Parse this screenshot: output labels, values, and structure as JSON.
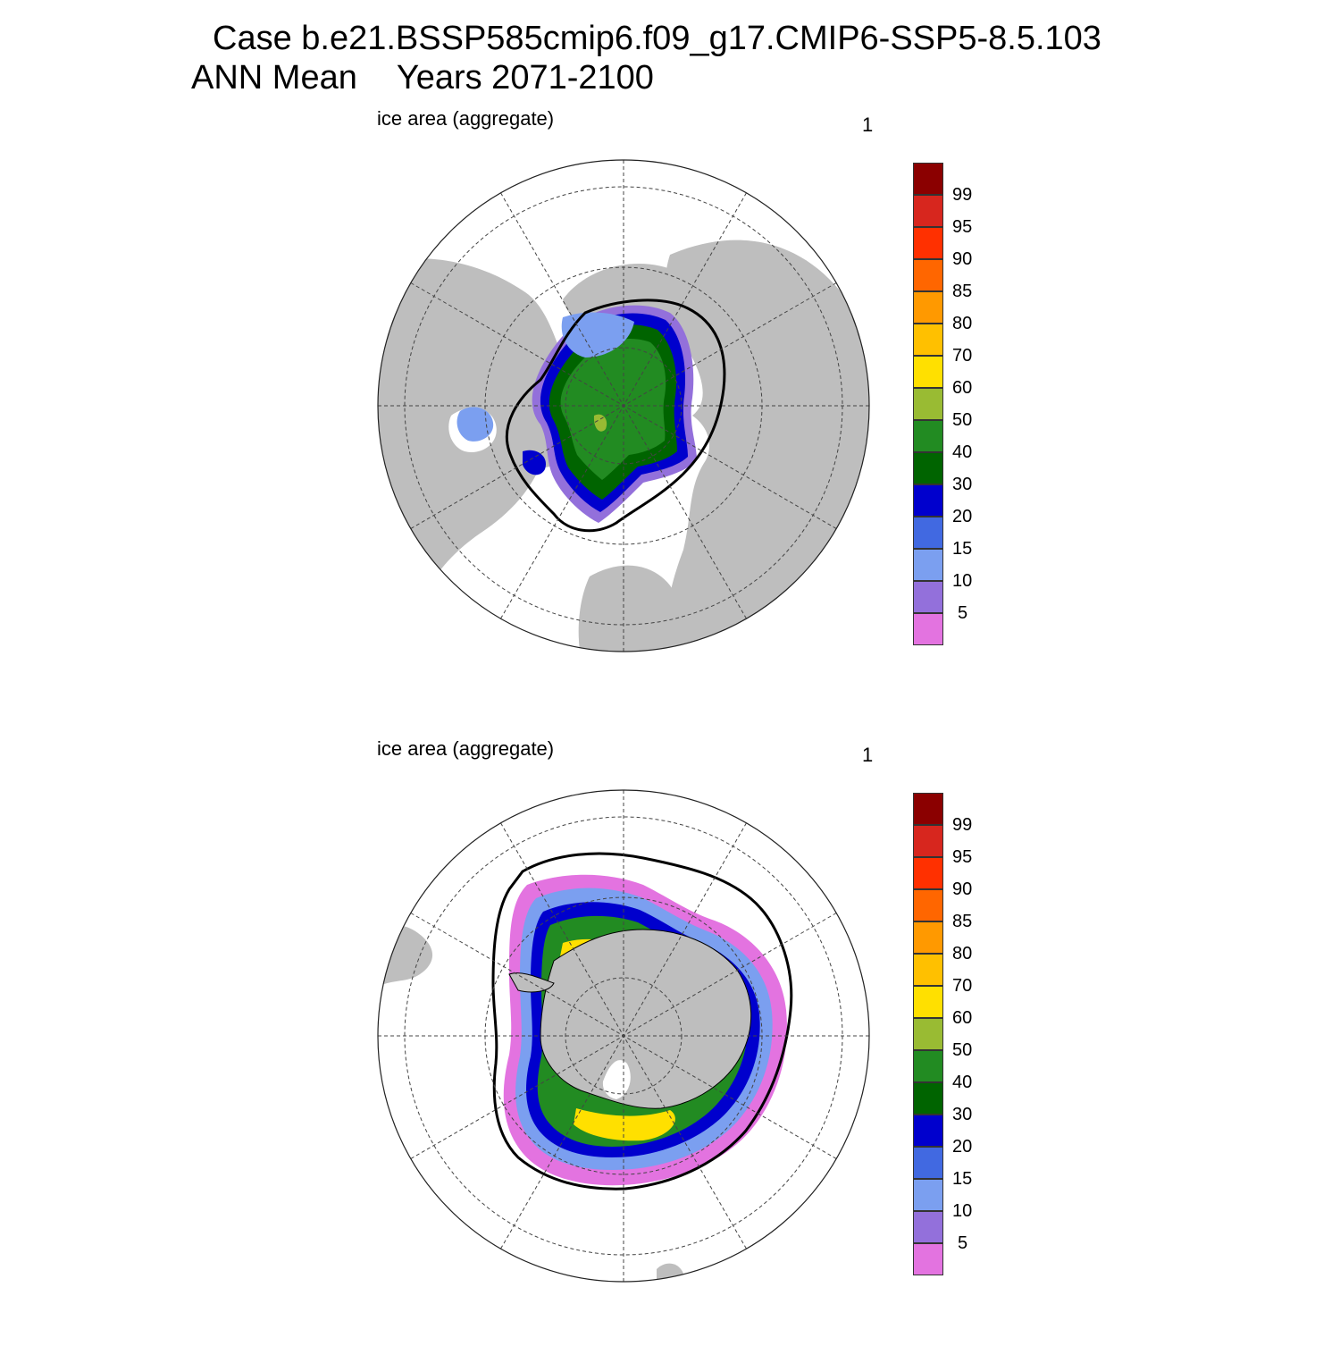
{
  "title": {
    "line1": "Case b.e21.BSSP585cmip6.f09_g17.CMIP6-SSP5-8.5.103",
    "line2_left": "ANN Mean",
    "line2_right": "Years 2071-2100"
  },
  "panels": [
    {
      "id": "north",
      "hemisphere": "Northern",
      "label_left": "ice area  (aggregate)",
      "label_right": "1"
    },
    {
      "id": "south",
      "hemisphere": "Southern",
      "label_left": "ice area  (aggregate)",
      "label_right": "1"
    }
  ],
  "colorbar": {
    "levels": [
      "99",
      "95",
      "90",
      "85",
      "80",
      "70",
      "60",
      "50",
      "40",
      "30",
      "20",
      "15",
      "10",
      "5"
    ],
    "colors": [
      "#8b0000",
      "#d7261e",
      "#ff3000",
      "#ff6600",
      "#ff9900",
      "#ffc000",
      "#ffe000",
      "#99bb33",
      "#228b22",
      "#006400",
      "#0000cd",
      "#4169e1",
      "#7b9ff0",
      "#9370db",
      "#e373e0"
    ]
  },
  "map_colors": {
    "land": "#bebebe",
    "ocean": "#ffffff",
    "graticule": "#444444",
    "extent_line": "#000000"
  }
}
